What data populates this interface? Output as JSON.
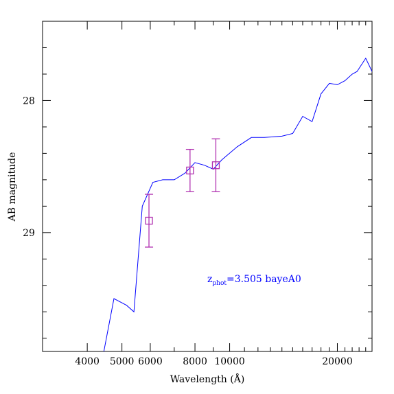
{
  "chart_data": {
    "type": "line",
    "title": "",
    "xlabel": "Wavelength (Å)",
    "ylabel": "AB magnitude",
    "x_scale": "log",
    "y_inverted": true,
    "xlim": [
      3000,
      25000
    ],
    "ylim": [
      29.9,
      27.4
    ],
    "x_ticks": [
      4000,
      5000,
      6000,
      8000,
      10000,
      20000
    ],
    "x_tick_labels": [
      "4000",
      "5000",
      "6000",
      "8000",
      "10000",
      "20000"
    ],
    "y_ticks": [
      28,
      29
    ],
    "y_tick_labels": [
      "28",
      "29"
    ],
    "colors": {
      "template": "#0000ff",
      "photometry": "#b030b0",
      "annotation": "#0000ff"
    },
    "series": [
      {
        "x": [
          4450,
          4750,
          5150,
          5400,
          5700,
          6100,
          6500,
          7000,
          7500,
          8000,
          8500,
          9000,
          9500,
          10500,
          11500,
          12500,
          14000,
          15000,
          16000,
          17000,
          18000,
          19000,
          20000,
          21000,
          22000,
          22700,
          24000,
          25000
        ],
        "y": [
          29.9,
          29.5,
          29.55,
          29.6,
          28.8,
          28.62,
          28.6,
          28.6,
          28.55,
          28.47,
          28.49,
          28.52,
          28.45,
          28.35,
          28.28,
          28.28,
          28.27,
          28.25,
          28.12,
          28.16,
          27.95,
          27.87,
          27.88,
          27.85,
          27.8,
          27.78,
          27.68,
          27.78
        ]
      }
    ],
    "points": [
      {
        "x": 5950,
        "y": 28.91,
        "y_err_top": 28.71,
        "y_err_bottom": 29.11
      },
      {
        "x": 7750,
        "y": 28.53,
        "y_err_top": 28.37,
        "y_err_bottom": 28.69
      },
      {
        "x": 9150,
        "y": 28.49,
        "y_err_top": 28.29,
        "y_err_bottom": 28.69
      }
    ],
    "annotation": {
      "prefix": "z",
      "subscript": "phot",
      "text": "=3.505 bayeA0"
    }
  }
}
